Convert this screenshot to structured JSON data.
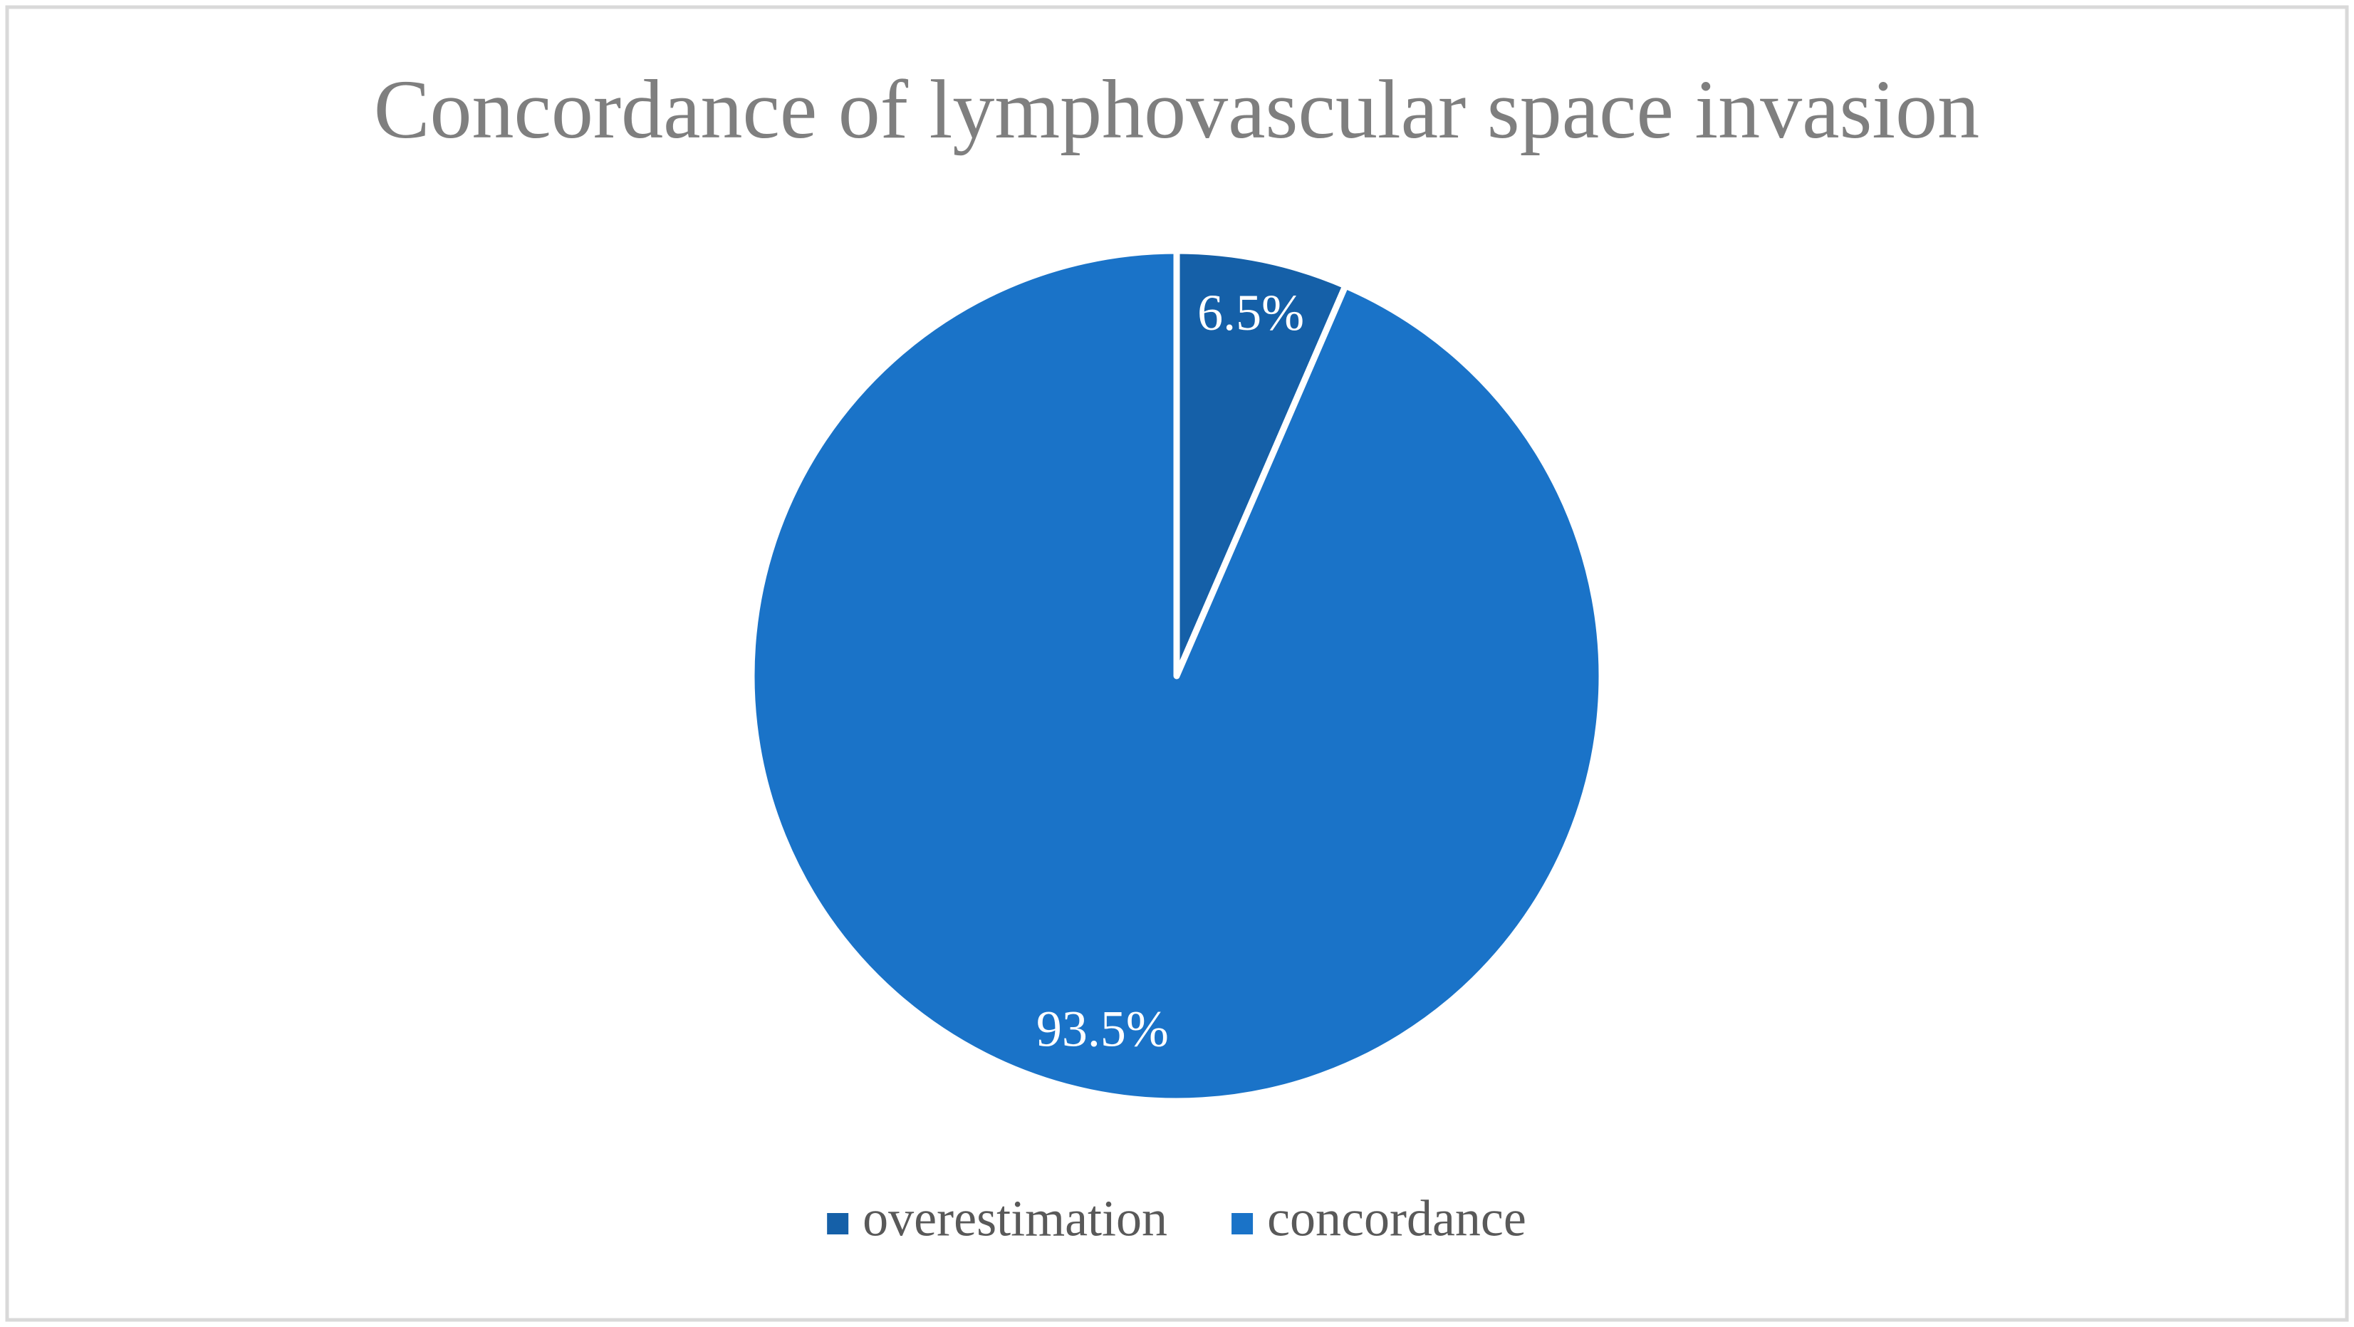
{
  "chart_data": {
    "type": "pie",
    "title": "Concordance of lymphovascular space invasion",
    "categories": [
      "overestimation",
      "concordance"
    ],
    "values": [
      6.5,
      93.5
    ],
    "value_labels": [
      "6.5%",
      "93.5%"
    ],
    "colors": [
      "#1560a8",
      "#1a73c8"
    ],
    "legend": "bottom"
  }
}
